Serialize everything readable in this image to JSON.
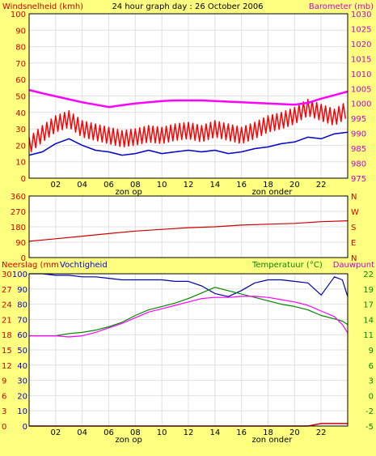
{
  "page": {
    "title": "24 hour graph day : 26 October 2006",
    "colors": {
      "background": "#ffff80",
      "plot_bg": "#ffffff",
      "grid": "#e0e0e0",
      "frame": "#000000",
      "wind_speed": "#0000cc",
      "wind_gust": "#ff0000",
      "barometer": "#ff00ff",
      "wind_dir": "#cc0000",
      "humidity": "#0000aa",
      "temperature": "#008800",
      "dewpoint": "#ff00ff",
      "rain": "#cc0000",
      "label_red": "#cc0000",
      "label_magenta": "#cc00cc",
      "label_green": "#008800",
      "label_blue": "#0000cc"
    }
  },
  "shared_x_axis": {
    "tick_labels": [
      "02",
      "04",
      "06",
      "08",
      "10",
      "12",
      "14",
      "16",
      "18",
      "20",
      "22"
    ],
    "sunrise_label": "zon op",
    "sunset_label": "zon onder"
  },
  "chart_data": [
    {
      "id": "wind_baro",
      "type": "line",
      "title": "24 hour graph day : 26 October 2006",
      "left_axis_label": "Windsnelheid (kmh)",
      "right_axis_label": "Barometer (mb)",
      "left_ticks": [
        "100",
        "90",
        "80",
        "70",
        "60",
        "50",
        "40",
        "30",
        "20",
        "10",
        "0"
      ],
      "right_ticks": [
        "1030",
        "1025",
        "1020",
        "1015",
        "1010",
        "1005",
        "1000",
        "995",
        "990",
        "985",
        "980",
        "975"
      ],
      "x": [
        0,
        1,
        2,
        3,
        4,
        5,
        6,
        7,
        8,
        9,
        10,
        11,
        12,
        13,
        14,
        15,
        16,
        17,
        18,
        19,
        20,
        21,
        22,
        23,
        24
      ],
      "series": [
        {
          "name": "Windsnelheid",
          "color": "#0000cc",
          "values": [
            14,
            16,
            21,
            24,
            20,
            17,
            16,
            14,
            15,
            17,
            15,
            16,
            17,
            16,
            17,
            15,
            16,
            18,
            19,
            21,
            22,
            25,
            24,
            27,
            28
          ]
        },
        {
          "name": "Windstoten",
          "color": "#ff0000",
          "values": [
            20,
            27,
            33,
            36,
            30,
            28,
            26,
            24,
            25,
            27,
            26,
            28,
            29,
            27,
            30,
            28,
            26,
            29,
            33,
            35,
            38,
            43,
            40,
            37,
            42
          ]
        },
        {
          "name": "Barometer",
          "color": "#ff00ff",
          "axis": "right",
          "values": [
            1004.5,
            1003.4,
            1002.4,
            1001.4,
            1000.4,
            999.6,
            998.8,
            999.4,
            1000,
            1000.4,
            1000.8,
            1001,
            1001,
            1001,
            1000.8,
            1000.6,
            1000.4,
            1000.2,
            1000,
            999.8,
            999.6,
            1000.2,
            1001.6,
            1002.8,
            1004
          ]
        }
      ],
      "ylim_left": [
        0,
        100
      ],
      "ylim_right": [
        975,
        1030
      ]
    },
    {
      "id": "wind_dir",
      "type": "line",
      "left_ticks": [
        "360",
        "270",
        "180",
        "90",
        "0"
      ],
      "right_ticks": [
        "N",
        "W",
        "S",
        "E",
        "N"
      ],
      "x": [
        0,
        2,
        4,
        6,
        8,
        10,
        12,
        14,
        16,
        18,
        20,
        22,
        24
      ],
      "series": [
        {
          "name": "Windrichting",
          "color": "#cc0000",
          "values": [
            95,
            110,
            125,
            140,
            155,
            165,
            175,
            180,
            190,
            195,
            200,
            210,
            215
          ]
        }
      ],
      "ylim": [
        0,
        360
      ]
    },
    {
      "id": "temp_hum",
      "type": "line",
      "left_axis_label_1": "Neerslag (mm",
      "left_axis_label_2": "Vochtigheid",
      "right_axis_label_1": "Temperatuur (°C)",
      "right_axis_label_2": "Dauwpunt",
      "rain_ticks": [
        "30",
        "27",
        "24",
        "21",
        "18",
        "15",
        "12",
        "9",
        "6",
        "3",
        "0"
      ],
      "hum_ticks": [
        "100",
        "90",
        "80",
        "70",
        "60",
        "50",
        "40",
        "30",
        "20",
        "10",
        "0"
      ],
      "temp_ticks": [
        "22",
        "19",
        "17",
        "14",
        "11",
        "9",
        "6",
        "3",
        "0",
        "-2",
        "-5"
      ],
      "x": [
        0,
        1,
        2,
        3,
        4,
        5,
        6,
        7,
        8,
        9,
        10,
        11,
        12,
        13,
        14,
        15,
        16,
        17,
        18,
        19,
        20,
        21,
        22,
        23,
        23.6,
        24
      ],
      "series": [
        {
          "name": "Vochtigheid",
          "color": "#0000aa",
          "values": [
            100,
            100,
            99,
            99,
            98,
            98,
            97,
            96,
            96,
            96,
            96,
            95,
            95,
            92,
            87,
            85,
            89,
            94,
            96,
            96,
            95,
            94,
            86,
            98,
            96,
            85
          ]
        },
        {
          "name": "Temperatuur",
          "color": "#008800",
          "axis": "right",
          "values": [
            11,
            11,
            11,
            11.4,
            11.6,
            12,
            12.6,
            13.4,
            14.6,
            15.6,
            16.2,
            16.8,
            17.6,
            18.6,
            19.6,
            19,
            18.4,
            17.8,
            17.2,
            16.6,
            16.2,
            15.6,
            14.6,
            14,
            13.6,
            13
          ]
        },
        {
          "name": "Dauwpunt",
          "color": "#ff00ff",
          "axis": "right",
          "values": [
            11,
            11,
            11,
            10.8,
            11,
            11.6,
            12.4,
            13.2,
            14.2,
            15.2,
            15.8,
            16.4,
            17,
            17.6,
            17.8,
            17.8,
            18,
            18,
            17.8,
            17.4,
            17,
            16.4,
            15.4,
            14.4,
            13,
            11.5
          ]
        },
        {
          "name": "Neerslag",
          "color": "#cc0000",
          "values": [
            0,
            0,
            0,
            0,
            0,
            0,
            0,
            0,
            0,
            0,
            0,
            0,
            0,
            0,
            0,
            0,
            0,
            0,
            0,
            0,
            0,
            0,
            0.5,
            0.5,
            0.5,
            0.5
          ]
        }
      ],
      "ylim_rain": [
        0,
        30
      ],
      "ylim_hum": [
        0,
        100
      ],
      "ylim_temp": [
        -5,
        22
      ]
    }
  ]
}
